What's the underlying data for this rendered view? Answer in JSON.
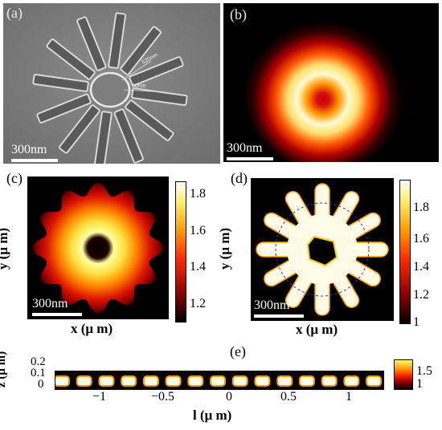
{
  "panels": {
    "a": {
      "letter": "(a)",
      "scalebar": "300nm",
      "annotations": [
        "520nm",
        "50nm"
      ]
    },
    "b": {
      "letter": "(b)",
      "scalebar": "300nm"
    },
    "c": {
      "letter": "(c)",
      "scalebar": "300nm",
      "xlabel": "x (μ m)",
      "ylabel": "y (μ m)",
      "colorbar_ticks": [
        "1.8",
        "1.6",
        "1.4",
        "1.2"
      ]
    },
    "d": {
      "letter": "(d)",
      "scalebar": "300nm",
      "xlabel": "x (μ m)",
      "ylabel": "y (μ m)",
      "colorbar_ticks": [
        "1.8",
        "1.6",
        "1.4",
        "1.2",
        "1"
      ]
    },
    "e": {
      "letter": "(e)",
      "xlabel": "l (μ m)",
      "ylabel": "z (μ m)",
      "yticks": [
        "0.2",
        "0.1",
        "0"
      ],
      "xticks": [
        "−1",
        "−0.5",
        "0",
        "0.5",
        "1"
      ],
      "colorbar_ticks": [
        "1.5",
        "1"
      ]
    }
  },
  "colors": {
    "hot_dark": "#000000",
    "hot_red": "#d01010",
    "hot_orange": "#ff8800",
    "hot_yellow": "#ffff80"
  }
}
